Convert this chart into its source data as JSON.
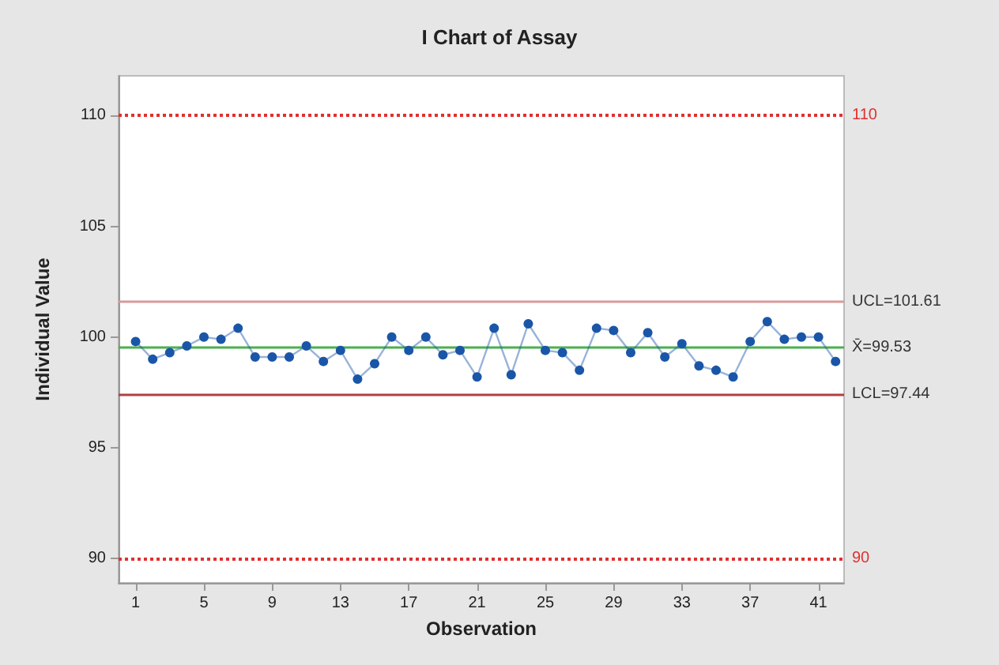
{
  "chart_data": {
    "type": "line",
    "title": "I Chart of Assay",
    "xlabel": "Observation",
    "ylabel": "Individual Value",
    "x": [
      1,
      2,
      3,
      4,
      5,
      6,
      7,
      8,
      9,
      10,
      11,
      12,
      13,
      14,
      15,
      16,
      17,
      18,
      19,
      20,
      21,
      22,
      23,
      24,
      25,
      26,
      27,
      28,
      29,
      30,
      31,
      32,
      33,
      34,
      35,
      36,
      37,
      38,
      39,
      40,
      41,
      42
    ],
    "series": [
      {
        "color": "#1a56a8",
        "values": [
          99.8,
          99.0,
          99.3,
          99.6,
          100.0,
          99.9,
          100.4,
          99.1,
          99.1,
          99.1,
          99.6,
          98.9,
          99.4,
          98.1,
          98.8,
          100.0,
          99.4,
          100.0,
          99.2,
          99.4,
          98.2,
          100.4,
          98.3,
          100.6,
          99.4,
          99.3,
          98.5,
          100.4,
          100.3,
          99.3,
          100.2,
          99.1,
          99.7,
          98.7,
          98.5,
          98.2,
          99.8,
          100.7,
          99.9,
          100.0,
          100.0,
          98.9
        ]
      }
    ],
    "xlim": [
      0,
      42.5
    ],
    "xticks": [
      1,
      5,
      9,
      13,
      17,
      21,
      25,
      29,
      33,
      37,
      41
    ],
    "ylim": [
      88.9,
      111.8
    ],
    "yticks": [
      90,
      95,
      100,
      105,
      110
    ],
    "ref_lines": [
      {
        "axis": "y",
        "value": 110,
        "label": "110",
        "color": "#e03030",
        "line_style": "dotted"
      },
      {
        "axis": "y",
        "value": 90,
        "label": "90",
        "color": "#e03030",
        "line_style": "dotted"
      },
      {
        "axis": "y",
        "value": 101.61,
        "label": "UCL=101.61",
        "color": "#d99a9a",
        "line_style": "solid"
      },
      {
        "axis": "y",
        "value": 99.53,
        "label": "X̄=99.53",
        "color": "#4cb050",
        "line_style": "solid"
      },
      {
        "axis": "y",
        "value": 97.44,
        "label": "LCL=97.44",
        "color": "#b04040",
        "line_style": "solid"
      }
    ],
    "marker": "circle",
    "line_style": "solid"
  }
}
